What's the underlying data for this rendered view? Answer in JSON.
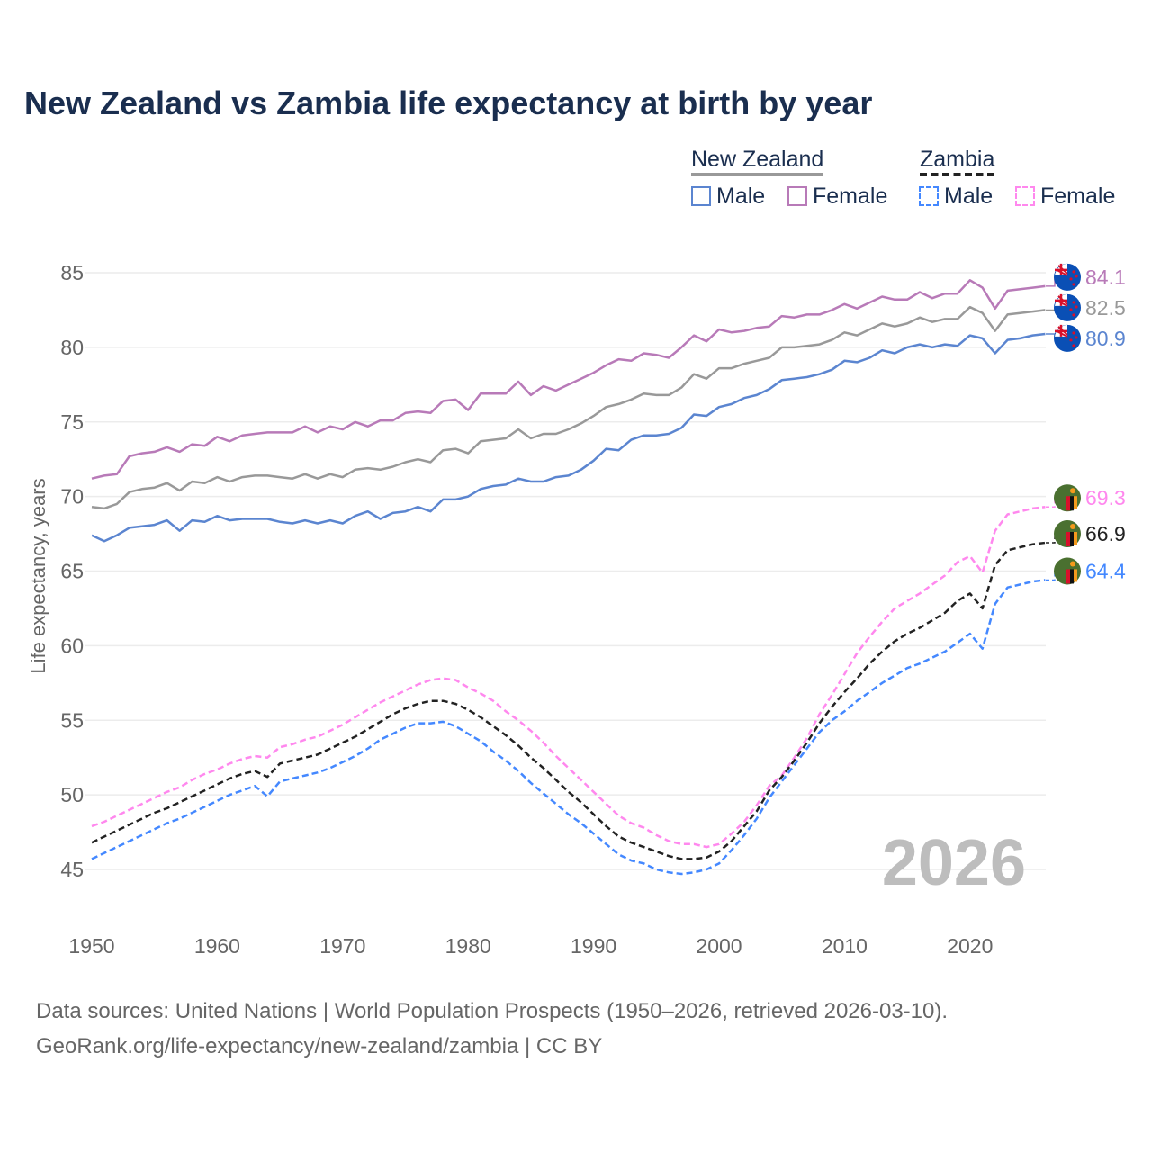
{
  "title": "New Zealand vs Zambia life expectancy at birth by year",
  "legend": {
    "groups": [
      {
        "country": "New Zealand",
        "male": "Male",
        "female": "Female"
      },
      {
        "country": "Zambia",
        "male": "Male",
        "female": "Female"
      }
    ]
  },
  "year_watermark": "2026",
  "footer": {
    "line1": "Data sources: United Nations | World Population Prospects (1950–2026, retrieved 2026-03-10).",
    "line2": "GeoRank.org/life-expectancy/new-zealand/zambia | CC BY"
  },
  "chart_data": {
    "type": "line",
    "title": "New Zealand vs Zambia life expectancy at birth by year",
    "xlabel": "",
    "ylabel": "Life expectancy, years",
    "xlim": [
      1950,
      2026
    ],
    "ylim": [
      43,
      87
    ],
    "xticks": [
      1950,
      1960,
      1970,
      1980,
      1990,
      2000,
      2010,
      2020
    ],
    "yticks": [
      45,
      50,
      55,
      60,
      65,
      70,
      75,
      80,
      85
    ],
    "grid": true,
    "legend_position": "top-right",
    "x_start": 1950,
    "series": [
      {
        "name": "New Zealand Female",
        "color": "#b87ab8",
        "dash": false,
        "flag": "new-zealand",
        "end_label": "84.1",
        "values": [
          71.2,
          71.4,
          71.5,
          72.7,
          72.9,
          73.0,
          73.3,
          73.0,
          73.5,
          73.4,
          74.0,
          73.7,
          74.1,
          74.2,
          74.3,
          74.3,
          74.3,
          74.7,
          74.3,
          74.7,
          74.5,
          75.0,
          74.7,
          75.1,
          75.1,
          75.6,
          75.7,
          75.6,
          76.4,
          76.5,
          75.8,
          76.9,
          76.9,
          76.9,
          77.7,
          76.8,
          77.4,
          77.1,
          77.5,
          77.9,
          78.3,
          78.8,
          79.2,
          79.1,
          79.6,
          79.5,
          79.3,
          80.0,
          80.8,
          80.4,
          81.2,
          81.0,
          81.1,
          81.3,
          81.4,
          82.1,
          82.0,
          82.2,
          82.2,
          82.5,
          82.9,
          82.6,
          83.0,
          83.4,
          83.2,
          83.2,
          83.7,
          83.3,
          83.6,
          83.6,
          84.5,
          84.0,
          82.6,
          83.8,
          83.9,
          84.0,
          84.1
        ]
      },
      {
        "name": "New Zealand",
        "color": "#999999",
        "dash": false,
        "flag": "new-zealand",
        "end_label": "82.5",
        "values": [
          69.3,
          69.2,
          69.5,
          70.3,
          70.5,
          70.6,
          70.9,
          70.4,
          71.0,
          70.9,
          71.3,
          71.0,
          71.3,
          71.4,
          71.4,
          71.3,
          71.2,
          71.5,
          71.2,
          71.5,
          71.3,
          71.8,
          71.9,
          71.8,
          72.0,
          72.3,
          72.5,
          72.3,
          73.1,
          73.2,
          72.9,
          73.7,
          73.8,
          73.9,
          74.5,
          73.9,
          74.2,
          74.2,
          74.5,
          74.9,
          75.4,
          76.0,
          76.2,
          76.5,
          76.9,
          76.8,
          76.8,
          77.3,
          78.2,
          77.9,
          78.6,
          78.6,
          78.9,
          79.1,
          79.3,
          80.0,
          80.0,
          80.1,
          80.2,
          80.5,
          81.0,
          80.8,
          81.2,
          81.6,
          81.4,
          81.6,
          82.0,
          81.7,
          81.9,
          81.9,
          82.7,
          82.3,
          81.1,
          82.2,
          82.3,
          82.4,
          82.5
        ]
      },
      {
        "name": "New Zealand Male",
        "color": "#5b85d0",
        "dash": false,
        "flag": "new-zealand",
        "end_label": "80.9",
        "values": [
          67.4,
          67.0,
          67.4,
          67.9,
          68.0,
          68.1,
          68.4,
          67.7,
          68.4,
          68.3,
          68.7,
          68.4,
          68.5,
          68.5,
          68.5,
          68.3,
          68.2,
          68.4,
          68.2,
          68.4,
          68.2,
          68.7,
          69.0,
          68.5,
          68.9,
          69.0,
          69.3,
          69.0,
          69.8,
          69.8,
          70.0,
          70.5,
          70.7,
          70.8,
          71.2,
          71.0,
          71.0,
          71.3,
          71.4,
          71.8,
          72.4,
          73.2,
          73.1,
          73.8,
          74.1,
          74.1,
          74.2,
          74.6,
          75.5,
          75.4,
          76.0,
          76.2,
          76.6,
          76.8,
          77.2,
          77.8,
          77.9,
          78.0,
          78.2,
          78.5,
          79.1,
          79.0,
          79.3,
          79.8,
          79.6,
          80.0,
          80.2,
          80.0,
          80.2,
          80.1,
          80.8,
          80.6,
          79.6,
          80.5,
          80.6,
          80.8,
          80.9
        ]
      },
      {
        "name": "Zambia Female",
        "color": "#ff88ee",
        "dash": true,
        "flag": "zambia",
        "end_label": "69.3",
        "values": [
          47.9,
          48.2,
          48.6,
          49.0,
          49.4,
          49.8,
          50.2,
          50.5,
          51.0,
          51.4,
          51.7,
          52.1,
          52.4,
          52.6,
          52.5,
          53.2,
          53.4,
          53.7,
          53.9,
          54.3,
          54.7,
          55.2,
          55.7,
          56.2,
          56.6,
          57.0,
          57.4,
          57.7,
          57.8,
          57.7,
          57.2,
          56.8,
          56.3,
          55.6,
          55.0,
          54.3,
          53.5,
          52.6,
          51.8,
          51.0,
          50.2,
          49.4,
          48.6,
          48.1,
          47.8,
          47.3,
          46.9,
          46.7,
          46.7,
          46.5,
          46.7,
          47.4,
          48.2,
          49.3,
          50.6,
          51.3,
          52.5,
          53.8,
          55.4,
          56.7,
          58.1,
          59.5,
          60.6,
          61.6,
          62.5,
          63.0,
          63.5,
          64.1,
          64.7,
          65.6,
          66.0,
          64.9,
          67.7,
          68.8,
          69.0,
          69.2,
          69.3
        ]
      },
      {
        "name": "Zambia",
        "color": "#222222",
        "dash": true,
        "flag": "zambia",
        "end_label": "66.9",
        "values": [
          46.8,
          47.2,
          47.6,
          48.0,
          48.4,
          48.8,
          49.1,
          49.5,
          49.9,
          50.3,
          50.7,
          51.1,
          51.4,
          51.6,
          51.2,
          52.1,
          52.3,
          52.5,
          52.7,
          53.1,
          53.5,
          53.9,
          54.4,
          54.9,
          55.4,
          55.8,
          56.1,
          56.3,
          56.3,
          56.1,
          55.7,
          55.2,
          54.6,
          54.0,
          53.3,
          52.5,
          51.8,
          51.0,
          50.2,
          49.5,
          48.7,
          47.9,
          47.2,
          46.8,
          46.5,
          46.2,
          45.9,
          45.7,
          45.7,
          45.8,
          46.2,
          46.9,
          47.9,
          48.9,
          50.3,
          51.2,
          52.3,
          53.5,
          54.8,
          55.9,
          56.9,
          57.8,
          58.8,
          59.6,
          60.3,
          60.8,
          61.2,
          61.7,
          62.2,
          63.0,
          63.5,
          62.5,
          65.4,
          66.4,
          66.6,
          66.8,
          66.9
        ]
      },
      {
        "name": "Zambia Male",
        "color": "#4488ff",
        "dash": true,
        "flag": "zambia",
        "end_label": "64.4",
        "values": [
          45.7,
          46.1,
          46.5,
          46.9,
          47.3,
          47.7,
          48.1,
          48.4,
          48.8,
          49.2,
          49.6,
          50.0,
          50.3,
          50.6,
          49.9,
          50.9,
          51.1,
          51.3,
          51.5,
          51.8,
          52.2,
          52.6,
          53.1,
          53.7,
          54.1,
          54.5,
          54.8,
          54.8,
          54.9,
          54.6,
          54.1,
          53.6,
          52.9,
          52.3,
          51.6,
          50.8,
          50.1,
          49.4,
          48.7,
          48.1,
          47.4,
          46.7,
          46.0,
          45.6,
          45.4,
          45.0,
          44.8,
          44.7,
          44.8,
          45.0,
          45.4,
          46.3,
          47.3,
          48.4,
          49.8,
          50.9,
          52.0,
          53.1,
          54.2,
          55.0,
          55.6,
          56.3,
          56.9,
          57.5,
          58.0,
          58.5,
          58.8,
          59.2,
          59.6,
          60.2,
          60.8,
          59.8,
          62.8,
          63.9,
          64.1,
          64.3,
          64.4
        ]
      }
    ]
  }
}
